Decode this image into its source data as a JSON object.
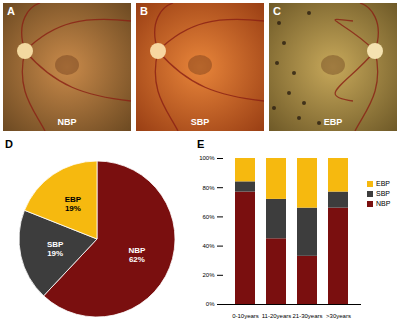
{
  "photos": [
    {
      "title": "A",
      "label": "NBP"
    },
    {
      "title": "B",
      "label": "SBP"
    },
    {
      "title": "C",
      "label": "EBP"
    }
  ],
  "chart_data": [
    {
      "type": "pie",
      "title": "D",
      "categories": [
        "NBP",
        "SBP",
        "EBP"
      ],
      "values": [
        62,
        19,
        19
      ],
      "value_labels": [
        "62%",
        "19%",
        "19%"
      ],
      "colors": [
        "#7a0f0f",
        "#3d3d3d",
        "#f6b90f"
      ],
      "data_labels": true
    },
    {
      "type": "bar",
      "title": "E",
      "stacked": true,
      "legend": "right",
      "categories": [
        "0-10years",
        "11-20years",
        "21-30years",
        ">30years"
      ],
      "series": [
        {
          "name": "NBP",
          "color": "#7a0f0f",
          "values": [
            77,
            45,
            33,
            66
          ]
        },
        {
          "name": "SBP",
          "color": "#3d3d3d",
          "values": [
            7,
            27,
            33,
            11
          ]
        },
        {
          "name": "EBP",
          "color": "#f6b90f",
          "values": [
            16,
            28,
            34,
            23
          ]
        }
      ],
      "ylim": [
        0,
        100
      ],
      "yticks": [
        {
          "value": 0,
          "label": "0%"
        },
        {
          "value": 20,
          "label": "20%"
        },
        {
          "value": 40,
          "label": "40%"
        },
        {
          "value": 60,
          "label": "60%"
        },
        {
          "value": 80,
          "label": "80%"
        },
        {
          "value": 100,
          "label": "100%"
        }
      ]
    }
  ]
}
